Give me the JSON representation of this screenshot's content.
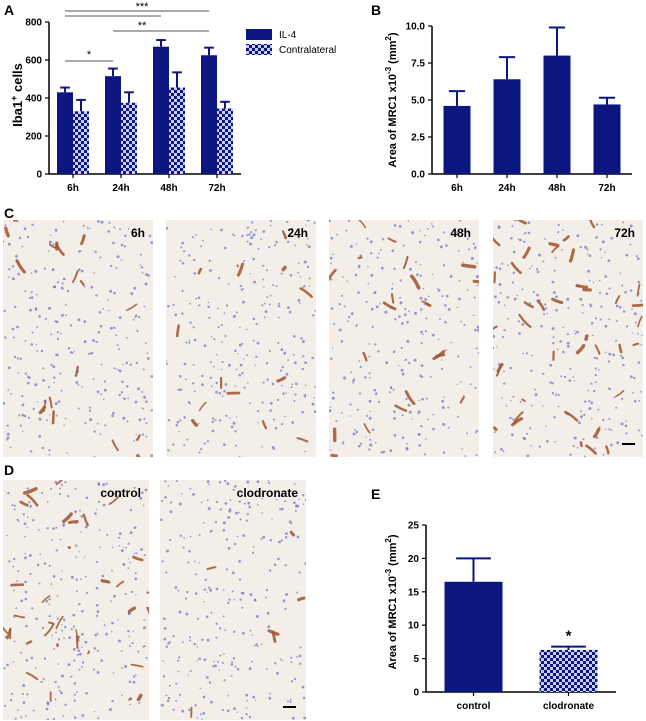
{
  "panels": {
    "A": "A",
    "B": "B",
    "C": "C",
    "D": "D",
    "E": "E"
  },
  "colors": {
    "navy": "#0b1680",
    "check_light": "#c8cdf0",
    "tissue_bg": "#f3efe8",
    "nuclei": "#6a70c4",
    "stain": "#a0522d"
  },
  "chart_data": [
    {
      "id": "A",
      "type": "bar",
      "categories": [
        "6h",
        "24h",
        "48h",
        "72h"
      ],
      "ylabel": "Iba1+ cells",
      "ylabel_main": "Iba1",
      "ylabel_sup": "+",
      "ylabel_tail": " cells",
      "ylim": [
        0,
        800
      ],
      "yticks": [
        "0",
        "200",
        "400",
        "600",
        "800"
      ],
      "legend_position": "top-right",
      "series": [
        {
          "name": "IL-4",
          "values": [
            430,
            515,
            670,
            625
          ],
          "errors": [
            25,
            40,
            35,
            40
          ]
        },
        {
          "name": "Contralateral",
          "values": [
            330,
            375,
            455,
            345
          ],
          "errors": [
            60,
            55,
            80,
            35
          ]
        }
      ],
      "significance": [
        "*",
        "**",
        "***"
      ]
    },
    {
      "id": "B",
      "type": "bar",
      "categories": [
        "6h",
        "24h",
        "48h",
        "72h"
      ],
      "ylabel_main": "Area of MRC1 x10",
      "ylabel_exp": "-3",
      "ylabel_mid": " (mm",
      "ylabel_sq": "2",
      "ylabel_end": ")",
      "ylim": [
        0,
        10
      ],
      "yticks": [
        "0.0",
        "2.5",
        "5.0",
        "7.5",
        "10.0"
      ],
      "series": [
        {
          "values": [
            4.6,
            6.4,
            8.0,
            4.7
          ],
          "errors": [
            1.0,
            1.5,
            1.9,
            0.45
          ]
        }
      ]
    },
    {
      "id": "E",
      "type": "bar",
      "categories": [
        "control",
        "clodronate"
      ],
      "ylabel_main": "Area of MRC1 x10",
      "ylabel_exp": "-3",
      "ylabel_mid": " (mm",
      "ylabel_sq": "2",
      "ylabel_end": ")",
      "ylim": [
        0,
        25
      ],
      "yticks": [
        "0",
        "5",
        "10",
        "15",
        "20",
        "25"
      ],
      "series": [
        {
          "values": [
            16.5,
            6.3
          ],
          "errors": [
            3.5,
            0.5
          ]
        }
      ],
      "significance": [
        "*"
      ]
    }
  ],
  "micrographs": {
    "C": [
      "6h",
      "24h",
      "48h",
      "72h"
    ],
    "D": [
      "control",
      "clodronate"
    ]
  }
}
